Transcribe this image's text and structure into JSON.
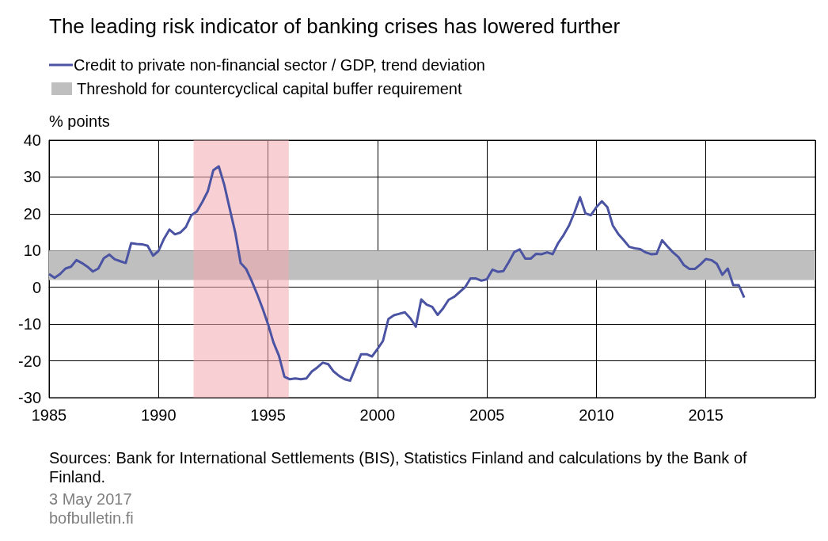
{
  "chart_data": {
    "type": "line",
    "title": "The leading risk indicator of banking crises has lowered further",
    "ylabel": "% points",
    "annotations": [
      "Sources: Bank for International Settlements (BIS), Statistics Finland and calculations by the Bank of Finland.",
      "3 May 2017",
      "bofbulletin.fi"
    ],
    "series": [
      {
        "name": "Credit to private non-financial sector / GDP, trend deviation",
        "color": "#4b53a3",
        "x": [
          1985,
          1985.25,
          1985.5,
          1985.75,
          1986,
          1986.25,
          1986.5,
          1986.75,
          1987,
          1987.25,
          1987.5,
          1987.75,
          1988,
          1988.25,
          1988.5,
          1988.75,
          1989,
          1989.25,
          1989.5,
          1989.75,
          1990,
          1990.25,
          1990.5,
          1990.75,
          1991,
          1991.25,
          1991.5,
          1991.75,
          1992,
          1992.25,
          1992.5,
          1992.75,
          1993,
          1993.25,
          1993.5,
          1993.75,
          1994,
          1994.25,
          1994.5,
          1994.75,
          1995,
          1995.25,
          1995.5,
          1995.75,
          1996,
          1996.25,
          1996.5,
          1996.75,
          1997,
          1997.25,
          1997.5,
          1997.75,
          1998,
          1998.25,
          1998.5,
          1998.75,
          1999,
          1999.25,
          1999.5,
          1999.75,
          2000,
          2000.25,
          2000.5,
          2000.75,
          2001,
          2001.25,
          2001.5,
          2001.75,
          2002,
          2002.25,
          2002.5,
          2002.75,
          2003,
          2003.25,
          2003.5,
          2003.75,
          2004,
          2004.25,
          2004.5,
          2004.75,
          2005,
          2005.25,
          2005.5,
          2005.75,
          2006,
          2006.25,
          2006.5,
          2006.75,
          2007,
          2007.25,
          2007.5,
          2007.75,
          2008,
          2008.25,
          2008.5,
          2008.75,
          2009,
          2009.25,
          2009.5,
          2009.75,
          2010,
          2010.25,
          2010.5,
          2010.75,
          2011,
          2011.25,
          2011.5,
          2011.75,
          2012,
          2012.25,
          2012.5,
          2012.75,
          2013,
          2013.25,
          2013.5,
          2013.75,
          2014,
          2014.25,
          2014.5,
          2014.75,
          2015,
          2015.25,
          2015.5,
          2015.75,
          2016,
          2016.25,
          2016.5,
          2016.75
        ],
        "values": [
          3.6,
          2.6,
          3.6,
          5.1,
          5.6,
          7.4,
          6.6,
          5.6,
          4.3,
          5.1,
          7.9,
          8.9,
          7.6,
          7.1,
          6.6,
          12.0,
          11.8,
          11.7,
          11.3,
          8.6,
          9.9,
          13.2,
          15.7,
          14.4,
          14.9,
          16.4,
          19.6,
          20.6,
          23.2,
          26.1,
          31.8,
          32.9,
          27.9,
          21.4,
          15.0,
          6.6,
          5.0,
          1.8,
          -1.8,
          -5.7,
          -10.0,
          -15.0,
          -18.6,
          -24.3,
          -25.0,
          -24.8,
          -25.0,
          -24.8,
          -22.9,
          -21.8,
          -20.5,
          -20.9,
          -22.9,
          -24.1,
          -25.0,
          -25.4,
          -21.8,
          -18.2,
          -18.2,
          -18.8,
          -16.8,
          -14.6,
          -8.6,
          -7.6,
          -7.2,
          -6.8,
          -8.4,
          -10.7,
          -3.3,
          -4.7,
          -5.3,
          -7.5,
          -5.7,
          -3.4,
          -2.6,
          -1.3,
          0,
          2.4,
          2.4,
          1.8,
          2.2,
          4.8,
          4.2,
          4.4,
          6.9,
          9.6,
          10.3,
          7.8,
          7.8,
          9.1,
          9.0,
          9.5,
          9.0,
          12.0,
          14.2,
          16.8,
          20.4,
          24.5,
          20.1,
          19.6,
          21.8,
          23.4,
          21.8,
          16.8,
          14.5,
          12.8,
          11.0,
          10.6,
          10.4,
          9.5,
          9.0,
          9.1,
          12.8,
          11.1,
          9.5,
          8.2,
          6.0,
          5.0,
          5.0,
          6.2,
          7.7,
          7.4,
          6.4,
          3.4,
          5.1,
          0.6,
          0.6,
          -2.8
        ]
      }
    ],
    "bands": [
      {
        "axis": "y",
        "from": 2,
        "to": 10,
        "label": "Threshold for countercyclical capital buffer requirement",
        "color": "#bfbfbf"
      },
      {
        "axis": "x",
        "from": 1991.6,
        "to": 1995.95,
        "color": "#f2a7ae"
      }
    ],
    "xlim": [
      1985,
      2020
    ],
    "xticks": [
      1985,
      1990,
      1995,
      2000,
      2005,
      2010,
      2015
    ],
    "ylim": [
      -30,
      40
    ],
    "yticks": [
      -30,
      -20,
      -10,
      0,
      10,
      20,
      30,
      40
    ],
    "grid": true,
    "legend": "top left",
    "line_style": "solid",
    "marker": "none"
  }
}
